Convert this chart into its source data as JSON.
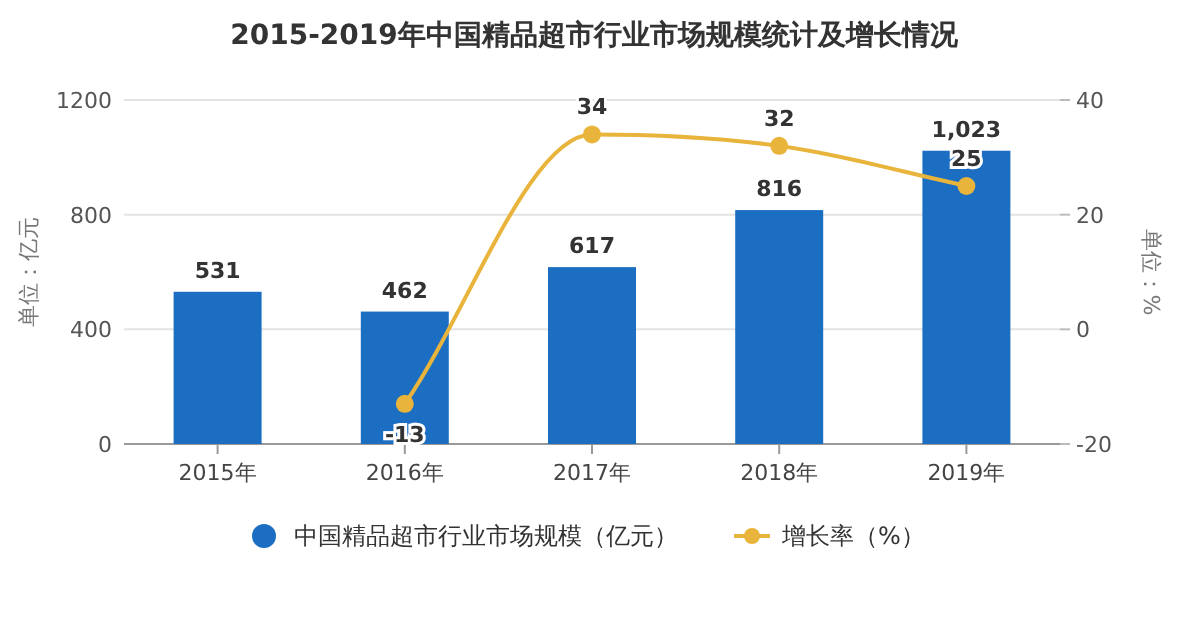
{
  "chart_data": {
    "type": "bar",
    "title": "2015-2019年中国精品超市行业市场规模统计及增长情况",
    "categories": [
      "2015年",
      "2016年",
      "2017年",
      "2018年",
      "2019年"
    ],
    "ylabel": "单位：亿元",
    "y2label": "单位：%",
    "ylim": [
      0,
      1200
    ],
    "yticks": [
      0,
      400,
      800,
      1200
    ],
    "y2lim": [
      -20,
      40
    ],
    "y2ticks": [
      -20,
      0,
      20,
      40
    ],
    "grid": "y",
    "legend": "bottom",
    "series": [
      {
        "name": "中国精品超市行业市场规模（亿元）",
        "color": "#1b6ec2",
        "values": [
          531,
          462,
          617,
          816,
          1023
        ],
        "value_labels": [
          "531",
          "462",
          "617",
          "816",
          "1,023"
        ]
      },
      {
        "name": "增长率（%）",
        "type": "line",
        "axis": "y2",
        "color": "#e8b43c",
        "marker": "circle",
        "values": [
          null,
          -13,
          34,
          32,
          25
        ],
        "value_labels": [
          null,
          "-13",
          "34",
          "32",
          "25"
        ]
      }
    ]
  }
}
